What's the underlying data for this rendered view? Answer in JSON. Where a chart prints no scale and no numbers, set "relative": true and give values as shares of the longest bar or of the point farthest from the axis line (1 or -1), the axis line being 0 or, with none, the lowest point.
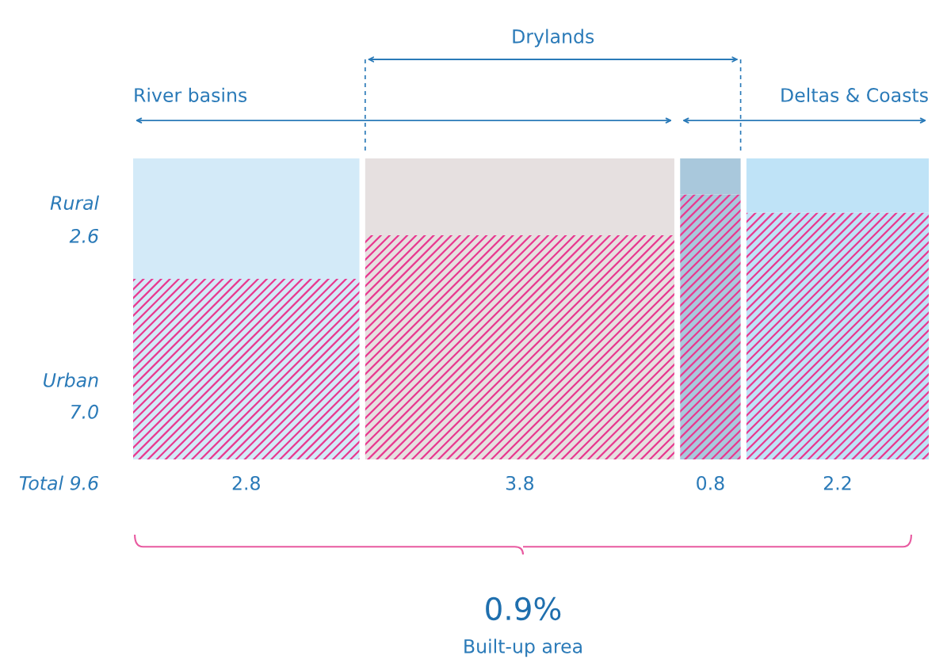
{
  "chart_data": {
    "type": "bar",
    "stacked": true,
    "relative": true,
    "categories": [
      "2.8",
      "3.8",
      "0.8",
      "2.2"
    ],
    "series": [
      {
        "name": "Urban",
        "color": "#e8388f",
        "values": [
          0.6,
          0.745,
          0.88,
          0.82
        ]
      },
      {
        "name": "Rural",
        "colors": [
          "#d3eaf8",
          "#e6e0e0",
          "#a9c8dc",
          "#bfe3f7"
        ],
        "values": [
          0.4,
          0.255,
          0.12,
          0.18
        ]
      }
    ],
    "annotations": [
      "River basins",
      "Drylands",
      "Deltas & Coasts",
      "Total 9.6",
      "2.6",
      "7.0",
      "0.9%",
      "Built-up area"
    ],
    "legend": false
  }
}
